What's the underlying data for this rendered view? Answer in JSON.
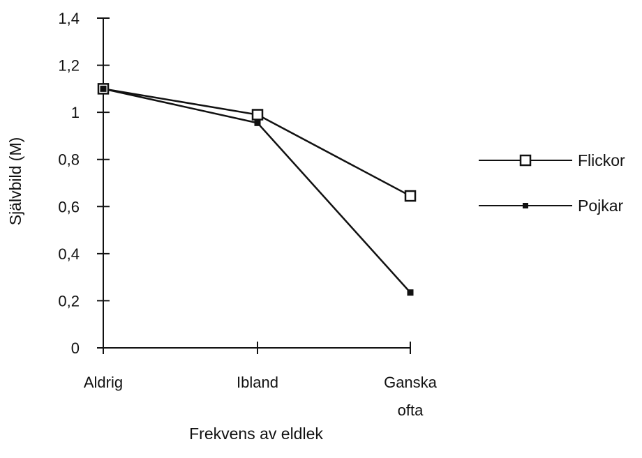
{
  "chart_data": {
    "type": "line",
    "categories": [
      [
        "Aldrig"
      ],
      [
        "Ibland"
      ],
      [
        "Ganska",
        "ofta"
      ]
    ],
    "ylabel": "Självbild  (M)",
    "xlabel": "Frekvens av eldlek",
    "ylim": [
      0,
      1.4
    ],
    "yticks": [
      "0",
      "0,2",
      "0,4",
      "0,6",
      "0,8",
      "1",
      "1,2",
      "1,4"
    ],
    "yticks_values": [
      0,
      0.2,
      0.4,
      0.6,
      0.8,
      1.0,
      1.2,
      1.4
    ],
    "grid": false,
    "legend_position": "right",
    "series": [
      {
        "name": "Flickor",
        "values": [
          1.1,
          0.99,
          0.645
        ],
        "marker": "open-square",
        "color": "#111111"
      },
      {
        "name": "Pojkar",
        "values": [
          1.1,
          0.955,
          0.235
        ],
        "marker": "filled-square",
        "color": "#111111"
      }
    ]
  }
}
